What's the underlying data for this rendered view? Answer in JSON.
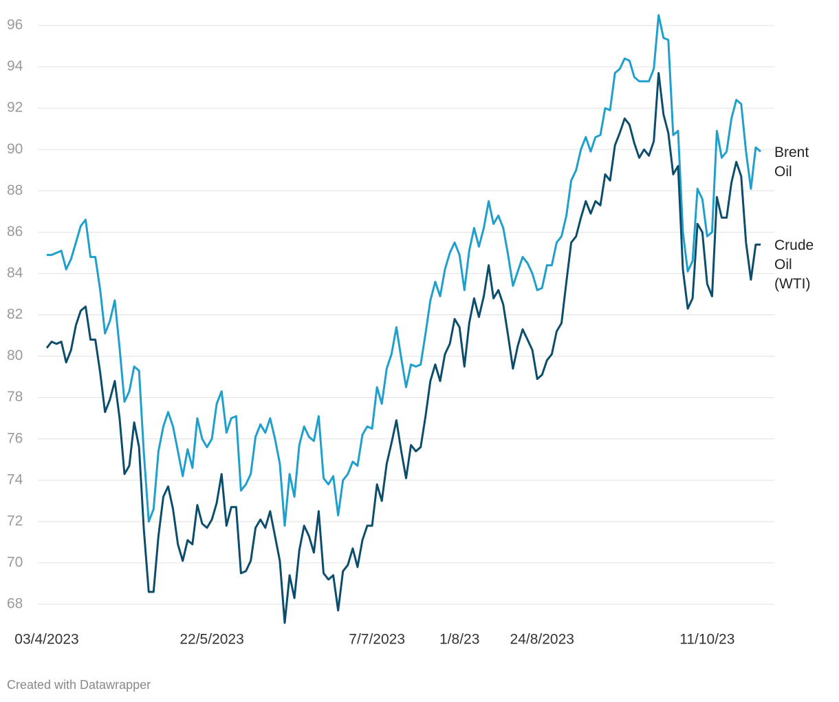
{
  "chart_data": {
    "type": "line",
    "categories": [
      "03/4/2023",
      null,
      null,
      null,
      null,
      null,
      null,
      null,
      null,
      null,
      null,
      null,
      null,
      null,
      null,
      null,
      null,
      null,
      null,
      null,
      null,
      null,
      null,
      null,
      null,
      null,
      null,
      null,
      null,
      null,
      null,
      null,
      null,
      null,
      "22/5/2023",
      null,
      null,
      null,
      null,
      null,
      null,
      null,
      null,
      null,
      null,
      null,
      null,
      null,
      null,
      null,
      null,
      null,
      null,
      null,
      null,
      null,
      null,
      null,
      null,
      null,
      null,
      null,
      null,
      null,
      null,
      null,
      null,
      null,
      "7/7/2023",
      null,
      null,
      null,
      null,
      null,
      null,
      null,
      null,
      null,
      null,
      null,
      null,
      null,
      null,
      null,
      null,
      "1/8/23",
      null,
      null,
      null,
      null,
      null,
      null,
      null,
      null,
      null,
      null,
      null,
      null,
      null,
      null,
      null,
      null,
      "24/8/2023",
      null,
      null,
      null,
      null,
      null,
      null,
      null,
      null,
      null,
      null,
      null,
      null,
      null,
      null,
      null,
      null,
      null,
      null,
      null,
      null,
      null,
      null,
      null,
      null,
      null,
      null,
      null,
      null,
      null,
      null,
      null,
      null,
      null,
      "11/10/23",
      null,
      null,
      null,
      null,
      null,
      null,
      null,
      null,
      null,
      null,
      null
    ],
    "series": [
      {
        "name": "Brent Oil",
        "color": "#1f9fcb",
        "values": [
          84.9,
          84.9,
          85.0,
          85.1,
          84.2,
          84.7,
          85.5,
          86.3,
          86.6,
          84.8,
          84.8,
          83.2,
          81.1,
          81.7,
          82.7,
          80.4,
          77.8,
          78.3,
          79.5,
          79.3,
          75.3,
          72.0,
          72.6,
          75.4,
          76.6,
          77.3,
          76.6,
          75.4,
          74.2,
          75.5,
          74.6,
          77.0,
          76.0,
          75.6,
          76.0,
          77.7,
          78.3,
          76.3,
          77.0,
          77.1,
          73.5,
          73.8,
          74.3,
          76.1,
          76.7,
          76.3,
          77.0,
          76.0,
          74.8,
          71.8,
          74.3,
          73.2,
          75.7,
          76.6,
          76.1,
          75.9,
          77.1,
          74.1,
          73.8,
          74.2,
          72.3,
          74.0,
          74.3,
          74.9,
          74.7,
          76.2,
          76.6,
          76.5,
          78.5,
          77.7,
          79.4,
          80.1,
          81.4,
          79.9,
          78.5,
          79.6,
          79.5,
          79.6,
          81.1,
          82.7,
          83.6,
          82.9,
          84.2,
          85.0,
          85.5,
          84.9,
          83.2,
          85.1,
          86.2,
          85.3,
          86.2,
          87.5,
          86.4,
          86.8,
          86.2,
          84.9,
          83.4,
          84.1,
          84.8,
          84.5,
          84.0,
          83.2,
          83.3,
          84.4,
          84.4,
          85.5,
          85.8,
          86.8,
          88.5,
          89.0,
          90.0,
          90.6,
          89.9,
          90.6,
          90.7,
          92.0,
          91.9,
          93.7,
          93.9,
          94.4,
          94.3,
          93.5,
          93.3,
          93.3,
          93.3,
          93.9,
          96.5,
          95.4,
          95.3,
          90.7,
          90.9,
          86.0,
          84.1,
          84.6,
          88.1,
          87.6,
          85.8,
          86.0,
          90.9,
          89.6,
          89.9,
          91.5,
          92.4,
          92.2,
          89.9,
          88.1,
          90.1,
          89.9
        ]
      },
      {
        "name": "Crude Oil (WTI)",
        "color": "#0b4d6b",
        "values": [
          80.4,
          80.7,
          80.6,
          80.7,
          79.7,
          80.3,
          81.5,
          82.2,
          82.4,
          80.8,
          80.8,
          79.2,
          77.3,
          77.9,
          78.8,
          77.0,
          74.3,
          74.7,
          76.8,
          75.6,
          71.6,
          68.6,
          68.6,
          71.3,
          73.2,
          73.7,
          72.6,
          70.9,
          70.1,
          71.1,
          70.9,
          72.8,
          71.9,
          71.7,
          72.1,
          72.9,
          74.3,
          71.8,
          72.7,
          72.7,
          69.5,
          69.6,
          70.1,
          71.7,
          72.1,
          71.7,
          72.5,
          71.3,
          70.1,
          67.1,
          69.4,
          68.3,
          70.6,
          71.8,
          71.3,
          70.5,
          72.5,
          69.5,
          69.2,
          69.4,
          67.7,
          69.6,
          69.9,
          70.7,
          69.8,
          71.1,
          71.8,
          71.8,
          73.8,
          73.0,
          74.8,
          75.8,
          76.9,
          75.4,
          74.1,
          75.7,
          75.4,
          75.6,
          77.1,
          78.8,
          79.6,
          78.8,
          80.1,
          80.6,
          81.8,
          81.4,
          79.5,
          81.6,
          82.8,
          81.9,
          82.9,
          84.4,
          82.8,
          83.2,
          82.5,
          81.0,
          79.4,
          80.5,
          81.3,
          80.8,
          80.3,
          78.9,
          79.1,
          79.8,
          80.1,
          81.2,
          81.6,
          83.6,
          85.5,
          85.8,
          86.7,
          87.5,
          86.9,
          87.5,
          87.3,
          88.8,
          88.5,
          90.2,
          90.8,
          91.5,
          91.2,
          90.3,
          89.6,
          90.0,
          89.7,
          90.4,
          93.7,
          91.7,
          90.8,
          88.8,
          89.2,
          84.2,
          82.3,
          82.8,
          86.4,
          86.0,
          83.5,
          82.9,
          87.7,
          86.7,
          86.7,
          88.4,
          89.4,
          88.7,
          85.5,
          83.7,
          85.4,
          85.4
        ]
      }
    ],
    "ylim": [
      68,
      96
    ],
    "yticks": [
      68,
      70,
      72,
      74,
      76,
      78,
      80,
      82,
      84,
      86,
      88,
      90,
      92,
      94,
      96
    ],
    "grid": true,
    "footer": "Created with Datawrapper"
  }
}
